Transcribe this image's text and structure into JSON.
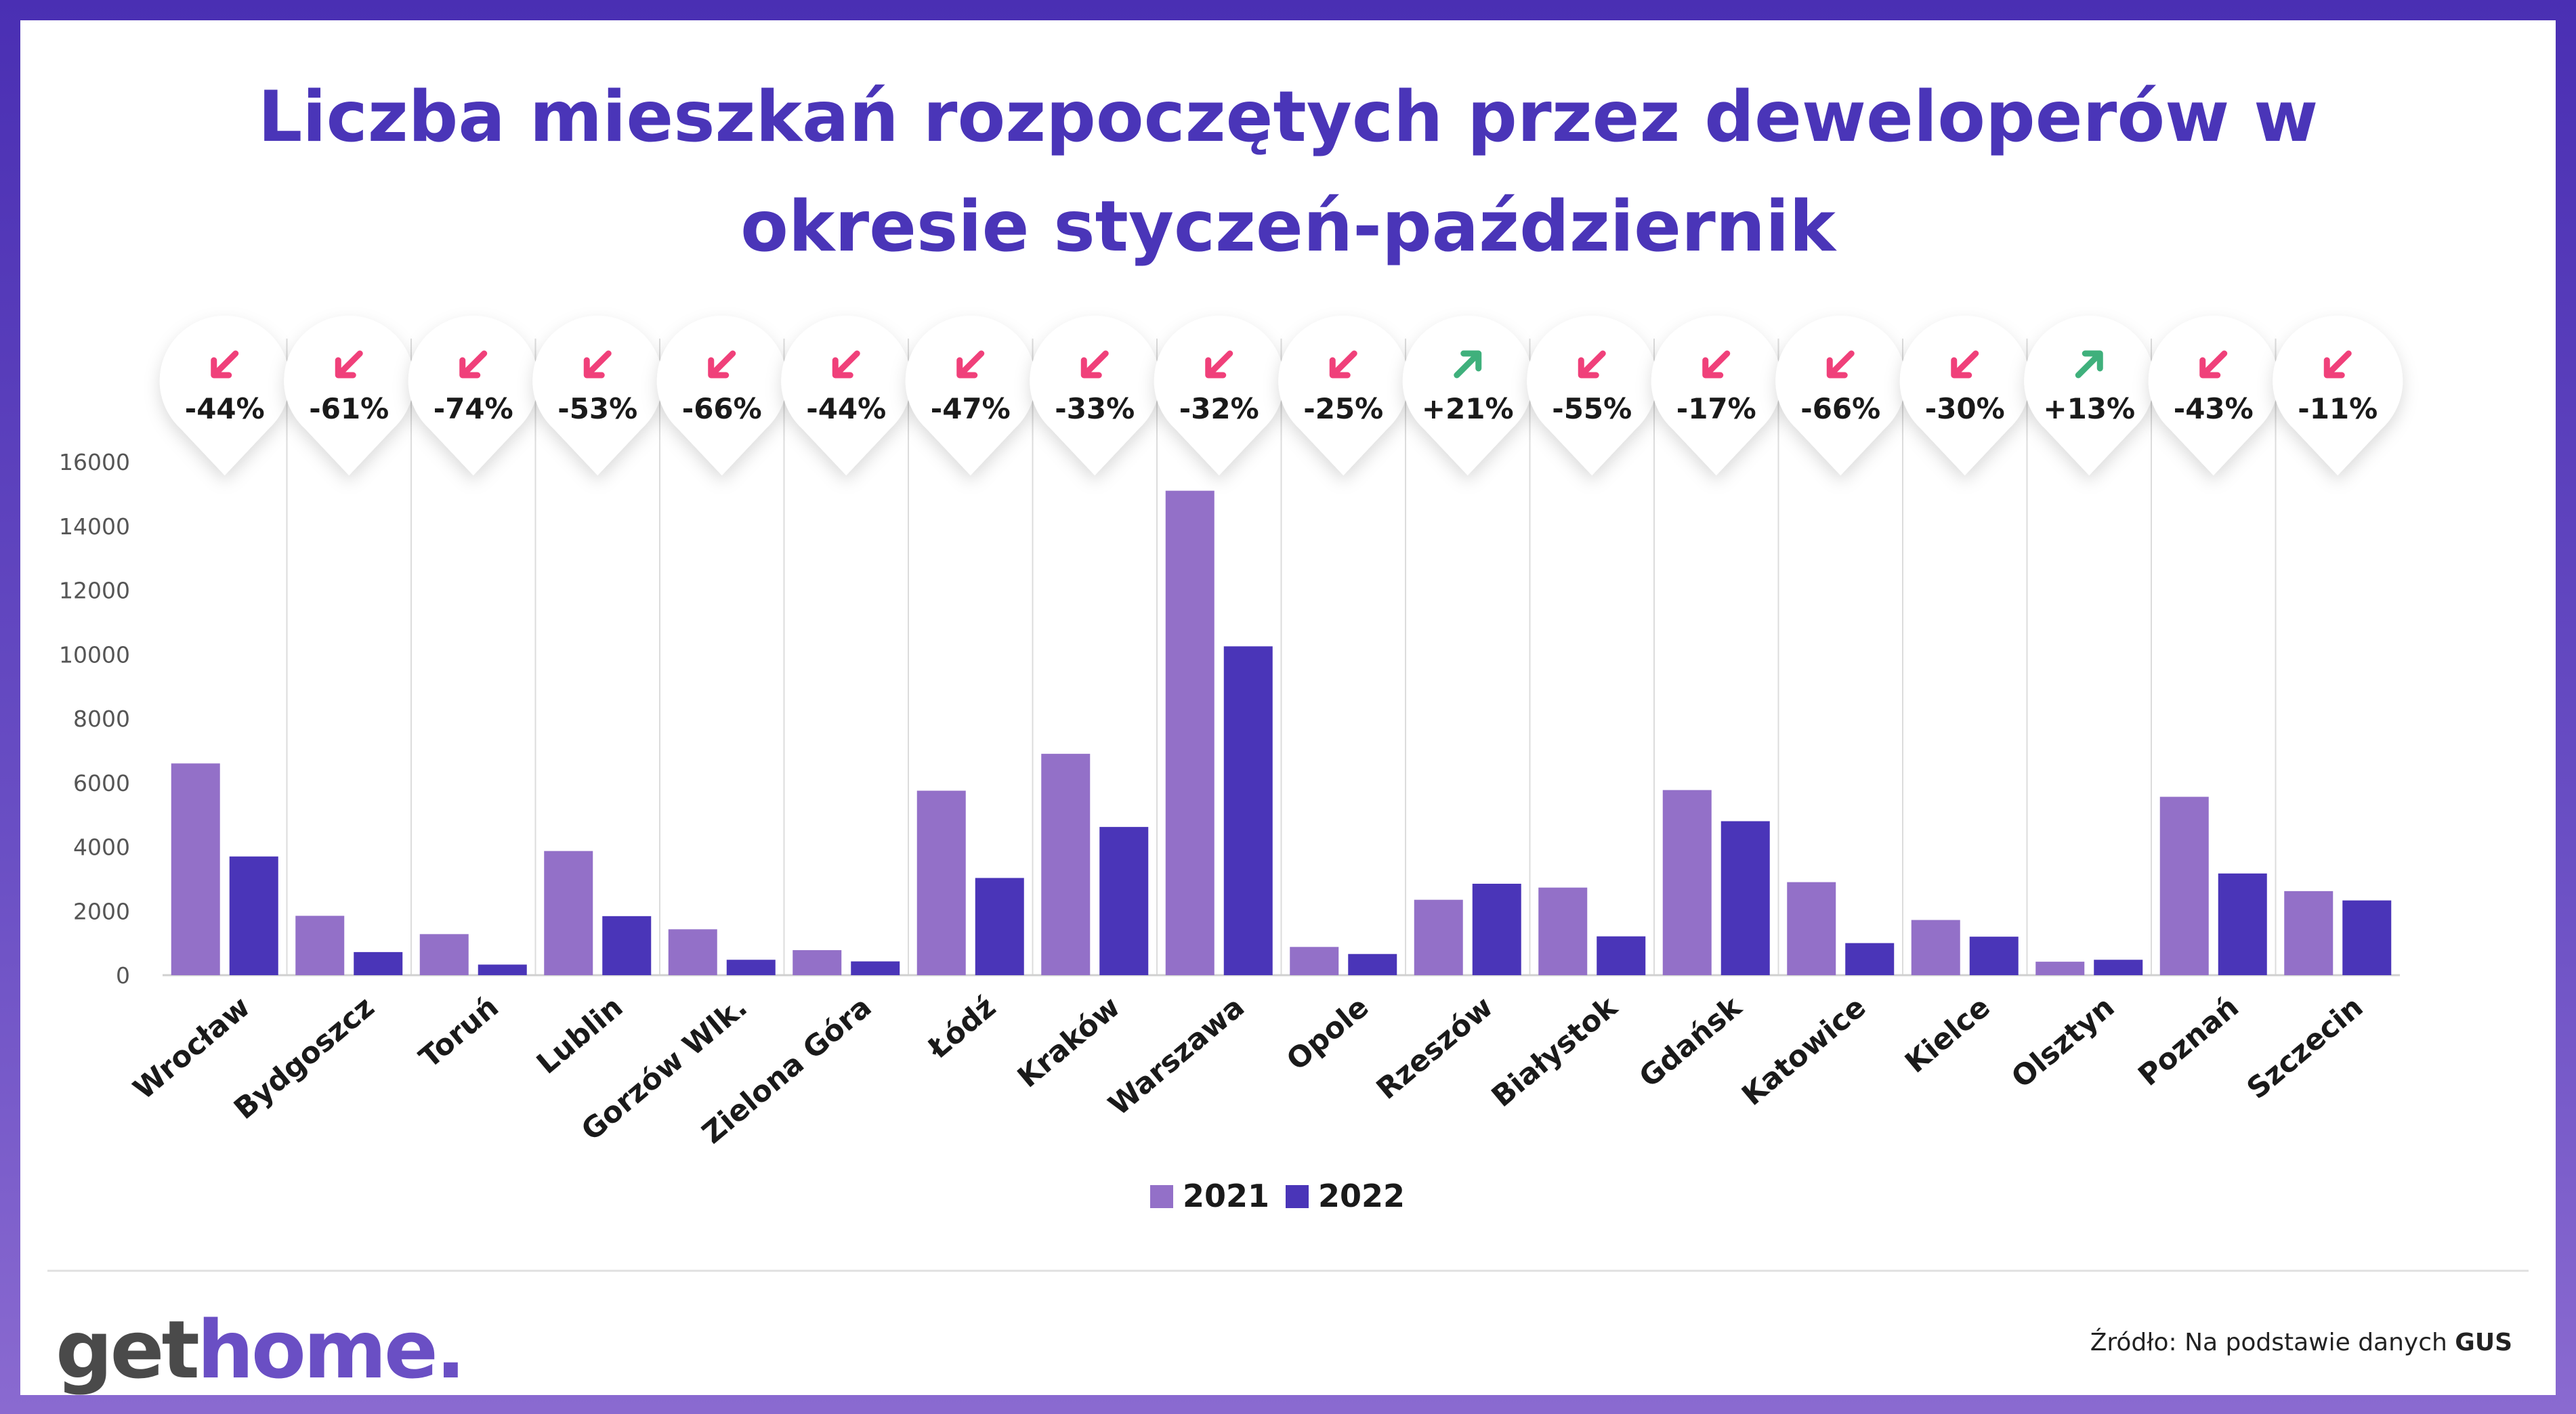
{
  "title_lines": [
    "Liczba mieszkań rozpoczętych przez deweloperów w",
    "okresie styczeń-październik"
  ],
  "logo": {
    "part1": "get",
    "part2": "home."
  },
  "source": {
    "prefix": "Źródło: Na podstawie danych ",
    "bold": "GUS"
  },
  "colors": {
    "series_2021": "#9370c8",
    "series_2022": "#4a35b8",
    "down": "#f0407a",
    "up": "#3fb07c",
    "title": "#4a35b8"
  },
  "chart_data": {
    "type": "bar",
    "categories": [
      "Wrocław",
      "Bydgoszcz",
      "Toruń",
      "Lublin",
      "Gorzów Wlk.",
      "Zielona Góra",
      "Łódź",
      "Kraków",
      "Warszawa",
      "Opole",
      "Rzeszów",
      "Białystok",
      "Gdańsk",
      "Katowice",
      "Kielce",
      "Olsztyn",
      "Poznań",
      "Szczecin"
    ],
    "series": [
      {
        "name": "2021",
        "values": [
          6600,
          1850,
          1280,
          3870,
          1430,
          780,
          5750,
          6900,
          15100,
          880,
          2350,
          2730,
          5770,
          2900,
          1720,
          420,
          5560,
          2620
        ]
      },
      {
        "name": "2022",
        "values": [
          3700,
          720,
          330,
          1840,
          480,
          430,
          3030,
          4620,
          10250,
          660,
          2850,
          1210,
          4800,
          1000,
          1200,
          480,
          3170,
          2330
        ]
      }
    ],
    "changes": [
      "-44%",
      "-61%",
      "-74%",
      "-53%",
      "-66%",
      "-44%",
      "-47%",
      "-33%",
      "-32%",
      "-25%",
      "+21%",
      "-55%",
      "-17%",
      "-66%",
      "-30%",
      "+13%",
      "-43%",
      "-11%"
    ],
    "y_ticks": [
      "0",
      "2000",
      "4000",
      "6000",
      "8000",
      "10000",
      "12000",
      "14000",
      "16000"
    ],
    "ylim": [
      0,
      16000
    ],
    "legend": [
      "2021",
      "2022"
    ],
    "legend_position": "bottom-center",
    "grid": false
  }
}
